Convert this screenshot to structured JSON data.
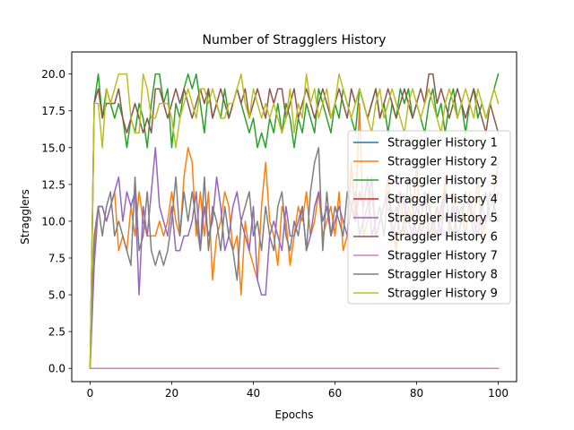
{
  "chart_data": {
    "type": "line",
    "title": "Number of Stragglers History",
    "xlabel": "Epochs",
    "ylabel": "Stragglers",
    "xlim": [
      -4.5,
      104.5
    ],
    "ylim": [
      -0.9,
      21.5
    ],
    "xticks": [
      0,
      20,
      40,
      60,
      80,
      100
    ],
    "yticks": [
      0.0,
      2.5,
      5.0,
      7.5,
      10.0,
      12.5,
      15.0,
      17.5,
      20.0
    ],
    "xtick_labels": [
      "0",
      "20",
      "40",
      "60",
      "80",
      "100"
    ],
    "ytick_labels": [
      "0.0",
      "2.5",
      "5.0",
      "7.5",
      "10.0",
      "12.5",
      "15.0",
      "17.5",
      "20.0"
    ],
    "grid": false,
    "legend_position": "center-right",
    "series": [
      {
        "name": "Straggler History 1",
        "color": "#1f77b4",
        "values": [
          0,
          0,
          0,
          0,
          0,
          0,
          0,
          0,
          0,
          0,
          0,
          0,
          0,
          0,
          0,
          0,
          0,
          0,
          0,
          0,
          0,
          0,
          0,
          0,
          0,
          0,
          0,
          0,
          0,
          0,
          0,
          0,
          0,
          0,
          0,
          0,
          0,
          0,
          0,
          0,
          0,
          0,
          0,
          0,
          0,
          0,
          0,
          0,
          0,
          0,
          0,
          0,
          0,
          0,
          0,
          0,
          0,
          0,
          0,
          0,
          0,
          0,
          0,
          0,
          0,
          0,
          0,
          0,
          0,
          0,
          0,
          0,
          0,
          0,
          0,
          0,
          0,
          0,
          0,
          0,
          0,
          0,
          0,
          0,
          0,
          0,
          0,
          0,
          0,
          0,
          0,
          0,
          0,
          0,
          0,
          0,
          0,
          0,
          0,
          0,
          0
        ]
      },
      {
        "name": "Straggler History 2",
        "color": "#ff7f0e",
        "values": [
          0,
          8,
          11,
          11,
          10,
          11,
          12,
          8,
          9,
          8,
          11,
          9,
          12,
          10,
          9,
          9,
          9,
          10,
          9,
          10,
          12,
          10,
          9,
          13,
          15,
          14,
          9,
          12,
          9,
          12,
          6,
          9,
          10,
          12,
          11,
          8,
          9,
          5,
          10,
          8,
          7,
          6,
          11,
          14,
          10,
          9,
          7,
          11,
          10,
          7,
          9,
          11,
          10,
          12,
          9,
          10,
          12,
          9,
          10,
          11,
          9,
          12,
          8,
          9,
          14,
          10,
          18,
          9,
          10,
          12,
          9,
          10,
          11,
          13,
          10,
          8,
          12,
          9,
          11,
          10,
          14,
          9,
          10,
          12,
          9,
          11,
          10,
          13,
          9,
          12,
          10,
          11,
          9,
          12,
          10,
          13,
          9,
          10,
          11,
          12,
          14
        ]
      },
      {
        "name": "Straggler History 3",
        "color": "#2ca02c",
        "values": [
          0,
          18,
          20,
          17,
          19,
          18,
          17,
          18,
          17,
          15,
          17,
          16,
          18,
          17,
          15,
          18,
          20,
          20,
          18,
          19,
          15,
          18,
          17,
          19,
          20,
          19,
          20,
          18,
          16,
          19,
          17,
          18,
          17,
          19,
          17,
          18,
          19,
          18,
          17,
          16,
          17,
          15,
          16,
          15,
          17,
          16,
          18,
          16,
          18,
          17,
          15,
          17,
          16,
          18,
          17,
          16,
          19,
          18,
          17,
          16,
          18,
          17,
          19,
          18,
          17,
          16,
          19,
          18,
          17,
          18,
          19,
          17,
          18,
          16,
          18,
          17,
          19,
          18,
          19,
          17,
          18,
          17,
          16,
          18,
          19,
          17,
          18,
          16,
          18,
          19,
          17,
          18,
          16,
          18,
          19,
          17,
          18,
          17,
          18,
          19,
          20
        ]
      },
      {
        "name": "Straggler History 4",
        "color": "#d62728",
        "values": [
          0,
          0,
          0,
          0,
          0,
          0,
          0,
          0,
          0,
          0,
          0,
          0,
          0,
          0,
          0,
          0,
          0,
          0,
          0,
          0,
          0,
          0,
          0,
          0,
          0,
          0,
          0,
          0,
          0,
          0,
          0,
          0,
          0,
          0,
          0,
          0,
          0,
          0,
          0,
          0,
          0,
          0,
          0,
          0,
          0,
          0,
          0,
          0,
          0,
          0,
          0,
          0,
          0,
          0,
          0,
          0,
          0,
          0,
          0,
          0,
          0,
          0,
          0,
          0,
          0,
          0,
          0,
          0,
          0,
          0,
          0,
          0,
          0,
          0,
          0,
          0,
          0,
          0,
          0,
          0,
          0,
          0,
          0,
          0,
          0,
          0,
          0,
          0,
          0,
          0,
          0,
          0,
          0,
          0,
          0,
          0,
          0,
          0,
          0,
          0,
          0
        ]
      },
      {
        "name": "Straggler History 5",
        "color": "#9467bd",
        "values": [
          0,
          7,
          11,
          11,
          10,
          11,
          12,
          13,
          10,
          12,
          11,
          12,
          5,
          11,
          9,
          12,
          15,
          11,
          10,
          9,
          11,
          8,
          8,
          9,
          9,
          10,
          12,
          8,
          11,
          9,
          10,
          13,
          11,
          8,
          9,
          11,
          12,
          10,
          9,
          8,
          11,
          6,
          5,
          5,
          9,
          10,
          9,
          8,
          11,
          9,
          9,
          10,
          11,
          8,
          9,
          11,
          12,
          10,
          11,
          9,
          10,
          11,
          10,
          9,
          11,
          12,
          9,
          10,
          11,
          13,
          9,
          10,
          11,
          12,
          9,
          10,
          12,
          11,
          10,
          9,
          11,
          10,
          12,
          9,
          10,
          11,
          9,
          12,
          10,
          11,
          9,
          10,
          12,
          11,
          10,
          9,
          11,
          10,
          12,
          11,
          12
        ]
      },
      {
        "name": "Straggler History 6",
        "color": "#8c564b",
        "values": [
          0,
          18,
          19,
          17,
          18,
          18,
          18,
          19,
          17,
          16,
          17,
          18,
          17,
          16,
          17,
          16,
          19,
          19,
          18,
          17,
          18,
          19,
          18,
          19,
          18,
          17,
          18,
          19,
          18,
          19,
          17,
          18,
          19,
          18,
          17,
          18,
          19,
          18,
          19,
          17,
          18,
          19,
          18,
          17,
          19,
          18,
          19,
          19,
          17,
          18,
          19,
          17,
          18,
          19,
          18,
          17,
          18,
          19,
          18,
          17,
          18,
          19,
          18,
          17,
          19,
          18,
          19,
          18,
          17,
          18,
          19,
          17,
          18,
          19,
          18,
          17,
          18,
          19,
          18,
          17,
          18,
          19,
          18,
          20,
          20,
          18,
          19,
          18,
          17,
          18,
          19,
          18,
          17,
          18,
          19,
          18,
          17,
          16,
          18,
          17,
          16
        ]
      },
      {
        "name": "Straggler History 7",
        "color": "#e377c2",
        "values": [
          0,
          0,
          0,
          0,
          0,
          0,
          0,
          0,
          0,
          0,
          0,
          0,
          0,
          0,
          0,
          0,
          0,
          0,
          0,
          0,
          0,
          0,
          0,
          0,
          0,
          0,
          0,
          0,
          0,
          0,
          0,
          0,
          0,
          0,
          0,
          0,
          0,
          0,
          0,
          0,
          0,
          0,
          0,
          0,
          0,
          0,
          0,
          0,
          0,
          0,
          0,
          0,
          0,
          0,
          0,
          0,
          0,
          0,
          0,
          0,
          0,
          0,
          0,
          0,
          0,
          0,
          0,
          0,
          0,
          0,
          0,
          0,
          0,
          0,
          0,
          0,
          0,
          0,
          0,
          0,
          0,
          0,
          0,
          0,
          0,
          0,
          0,
          0,
          0,
          0,
          0,
          0,
          0,
          0,
          0,
          0,
          0,
          0,
          0,
          0,
          0
        ]
      },
      {
        "name": "Straggler History 8",
        "color": "#7f7f7f",
        "values": [
          0,
          9,
          11,
          9,
          11,
          12,
          9,
          10,
          9,
          8,
          7,
          13,
          8,
          9,
          12,
          8,
          7,
          8,
          7,
          8,
          10,
          13,
          9,
          12,
          10,
          12,
          10,
          8,
          13,
          8,
          11,
          10,
          8,
          11,
          9,
          8,
          6,
          10,
          11,
          12,
          9,
          10,
          8,
          11,
          9,
          8,
          11,
          12,
          9,
          8,
          10,
          9,
          11,
          8,
          12,
          14,
          15,
          8,
          12,
          9,
          11,
          10,
          9,
          12,
          11,
          10,
          12,
          11,
          13,
          9,
          10,
          11,
          9,
          12,
          10,
          11,
          9,
          10,
          13,
          11,
          9,
          10,
          12,
          11,
          10,
          9,
          11,
          12,
          10,
          9,
          11,
          10,
          12,
          11,
          9,
          10,
          11,
          12,
          10,
          11,
          10
        ]
      },
      {
        "name": "Straggler History 9",
        "color": "#bcbd22",
        "values": [
          0,
          18,
          18,
          15,
          19,
          18,
          19,
          20,
          20,
          20,
          17,
          16,
          16,
          20,
          19,
          17,
          17,
          18,
          18,
          18,
          17,
          15,
          17,
          18,
          19,
          18,
          17,
          19,
          19,
          18,
          19,
          18,
          17,
          17,
          18,
          18,
          19,
          20,
          18,
          17,
          19,
          18,
          17,
          18,
          17,
          18,
          17,
          16,
          17,
          19,
          16,
          18,
          17,
          20,
          18,
          19,
          17,
          18,
          19,
          17,
          18,
          20,
          19,
          18,
          17,
          18,
          19,
          18,
          17,
          16,
          18,
          19,
          17,
          18,
          19,
          18,
          17,
          16,
          18,
          19,
          18,
          17,
          18,
          19,
          18,
          17,
          16,
          18,
          19,
          18,
          17,
          18,
          19,
          18,
          17,
          19,
          18,
          17,
          18,
          19,
          18
        ]
      }
    ]
  }
}
